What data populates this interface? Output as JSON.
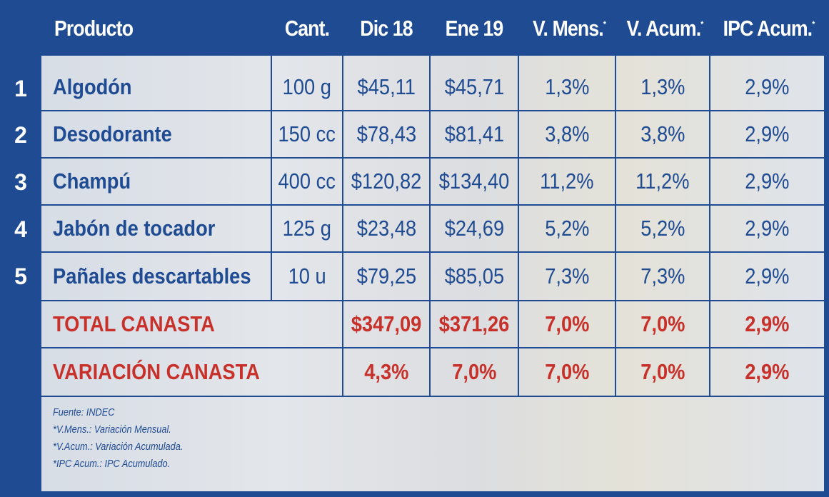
{
  "headers": {
    "producto": "Producto",
    "cant": "Cant.",
    "dic": "Dic 18",
    "ene": "Ene 19",
    "vmens": "V. Mens.",
    "vacum": "V. Acum.",
    "ipc": "IPC Acum.",
    "asterisk": "*"
  },
  "rows": [
    {
      "num": "1",
      "producto": "Algodón",
      "cant": "100 g",
      "dic": "$45,11",
      "ene": "$45,71",
      "vmens": "1,3%",
      "vacum": "1,3%",
      "ipc": "2,9%"
    },
    {
      "num": "2",
      "producto": "Desodorante",
      "cant": "150 cc",
      "dic": "$78,43",
      "ene": "$81,41",
      "vmens": "3,8%",
      "vacum": "3,8%",
      "ipc": "2,9%"
    },
    {
      "num": "3",
      "producto": "Champú",
      "cant": "400 cc",
      "dic": "$120,82",
      "ene": "$134,40",
      "vmens": "11,2%",
      "vacum": "11,2%",
      "ipc": "2,9%"
    },
    {
      "num": "4",
      "producto": "Jabón de tocador",
      "cant": "125 g",
      "dic": "$23,48",
      "ene": "$24,69",
      "vmens": "5,2%",
      "vacum": "5,2%",
      "ipc": "2,9%"
    },
    {
      "num": "5",
      "producto": "Pañales descartables",
      "cant": "10 u",
      "dic": "$79,25",
      "ene": "$85,05",
      "vmens": "7,3%",
      "vacum": "7,3%",
      "ipc": "2,9%"
    }
  ],
  "total": {
    "label": "TOTAL CANASTA",
    "dic": "$347,09",
    "ene": "$371,26",
    "vmens": "7,0%",
    "vacum": "7,0%",
    "ipc": "2,9%"
  },
  "variacion": {
    "label": "VARIACIÓN CANASTA",
    "dic": "4,3%",
    "ene": "7,0%",
    "vmens": "7,0%",
    "vacum": "7,0%",
    "ipc": "2,9%"
  },
  "notes": [
    "Fuente: INDEC",
    "*V.Mens.: Variación Mensual.",
    "*V.Acum.: Variación Acumulada.",
    "*IPC Acum.: IPC Acumulado."
  ]
}
